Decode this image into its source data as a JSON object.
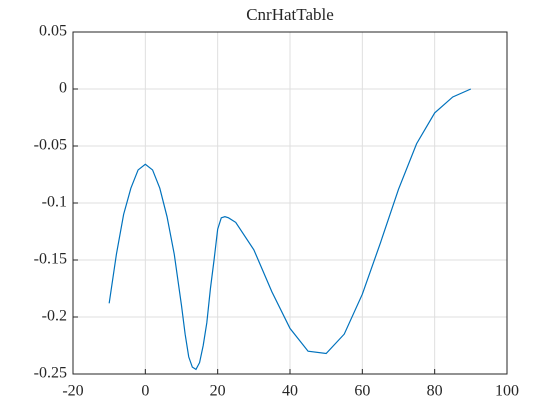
{
  "chart_data": {
    "type": "line",
    "title": "CnrHatTable",
    "x": [
      -10,
      -8,
      -6,
      -4,
      -2,
      0,
      2,
      4,
      6,
      8,
      10,
      11,
      12,
      13,
      14,
      15,
      16,
      17,
      18,
      19,
      20,
      21,
      22,
      23,
      25,
      30,
      35,
      40,
      45,
      50,
      55,
      60,
      65,
      70,
      75,
      80,
      85,
      90
    ],
    "values": [
      -0.188,
      -0.145,
      -0.11,
      -0.087,
      -0.071,
      -0.066,
      -0.071,
      -0.087,
      -0.112,
      -0.145,
      -0.19,
      -0.215,
      -0.235,
      -0.244,
      -0.246,
      -0.24,
      -0.225,
      -0.205,
      -0.175,
      -0.15,
      -0.123,
      -0.113,
      -0.112,
      -0.113,
      -0.117,
      -0.141,
      -0.178,
      -0.21,
      -0.23,
      -0.232,
      -0.215,
      -0.18,
      -0.135,
      -0.088,
      -0.048,
      -0.021,
      -0.007,
      0
    ],
    "color": "#0072bd",
    "xlim": [
      -20,
      100
    ],
    "xticks": [
      -20,
      0,
      20,
      40,
      60,
      80,
      100
    ],
    "ylim": [
      -0.25,
      0.05
    ],
    "yticks": [
      -0.25,
      -0.2,
      -0.15,
      -0.1,
      -0.05,
      0,
      0.05
    ],
    "grid": true
  }
}
